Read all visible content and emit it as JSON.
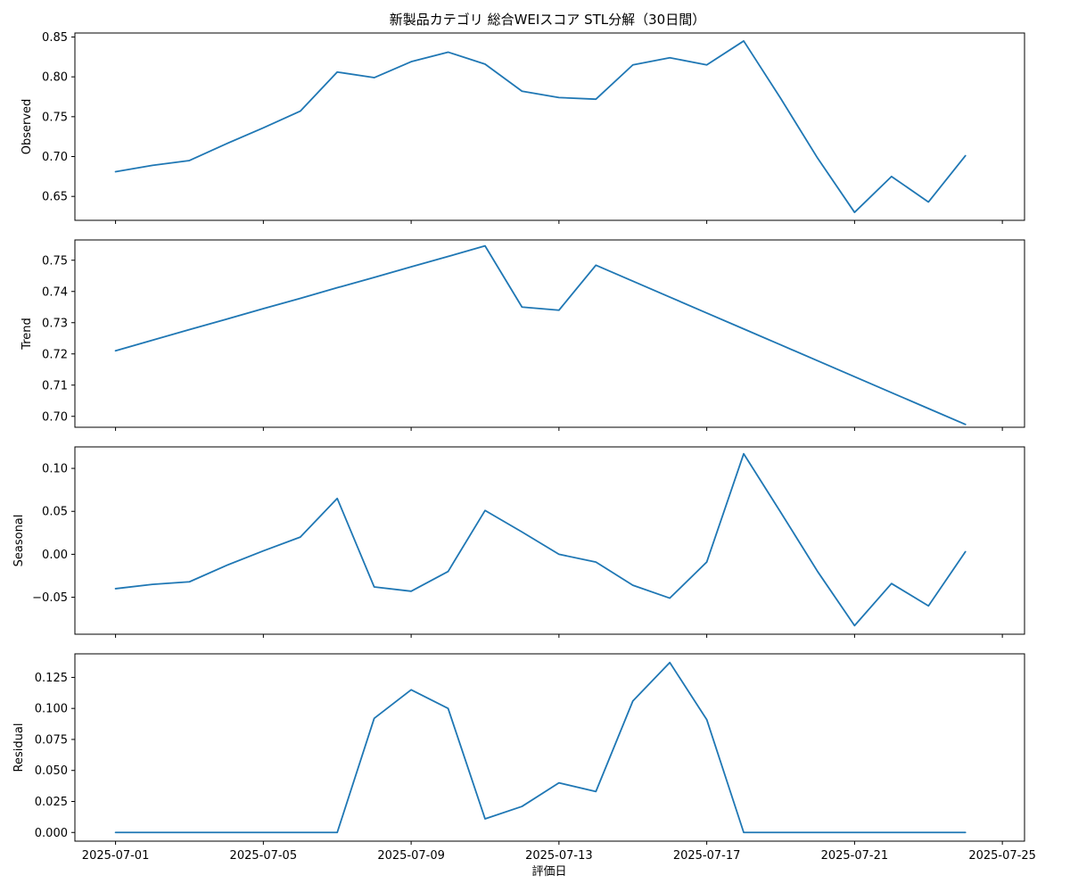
{
  "chart_data": {
    "type": "line",
    "title": "新製品カテゴリ 総合WEIスコア STL分解（30日間）",
    "xlabel": "評価日",
    "x_ticks": [
      "2025-07-01",
      "2025-07-05",
      "2025-07-09",
      "2025-07-13",
      "2025-07-17",
      "2025-07-21",
      "2025-07-25"
    ],
    "x": [
      "2025-07-01",
      "2025-07-02",
      "2025-07-03",
      "2025-07-04",
      "2025-07-05",
      "2025-07-06",
      "2025-07-07",
      "2025-07-08",
      "2025-07-09",
      "2025-07-10",
      "2025-07-11",
      "2025-07-12",
      "2025-07-13",
      "2025-07-14",
      "2025-07-15",
      "2025-07-16",
      "2025-07-17",
      "2025-07-18",
      "2025-07-19",
      "2025-07-20",
      "2025-07-21",
      "2025-07-22",
      "2025-07-23",
      "2025-07-24"
    ],
    "line_color": "#1f77b4",
    "grid": false,
    "panels": [
      {
        "ylabel": "Observed",
        "ylim": [
          0.62,
          0.855
        ],
        "y_ticks": [
          "0.65",
          "0.70",
          "0.75",
          "0.80",
          "0.85"
        ],
        "values": [
          0.681,
          0.689,
          0.695,
          0.716,
          0.736,
          0.757,
          0.806,
          0.799,
          0.819,
          0.831,
          0.816,
          0.782,
          0.774,
          0.772,
          0.815,
          0.824,
          0.815,
          0.845,
          0.773,
          0.698,
          0.63,
          0.675,
          0.643,
          0.701
        ]
      },
      {
        "ylabel": "Trend",
        "ylim": [
          0.6965,
          0.7565
        ],
        "y_ticks": [
          "0.70",
          "0.71",
          "0.72",
          "0.73",
          "0.74",
          "0.75"
        ],
        "values": [
          0.721,
          0.7244,
          0.7278,
          0.7311,
          0.7345,
          0.7378,
          0.7412,
          0.7445,
          0.7479,
          0.7512,
          0.7546,
          0.735,
          0.734,
          0.7484,
          0.7433,
          0.7382,
          0.7331,
          0.728,
          0.7229,
          0.7178,
          0.7127,
          0.7076,
          0.7025,
          0.6974
        ]
      },
      {
        "ylabel": "Seasonal",
        "ylim": [
          -0.093,
          0.125
        ],
        "y_ticks": [
          "−0.05",
          "0.00",
          "0.05",
          "0.10"
        ],
        "values": [
          -0.04,
          -0.035,
          -0.032,
          -0.013,
          0.004,
          0.02,
          0.065,
          -0.038,
          -0.043,
          -0.02,
          0.051,
          0.026,
          0.0,
          -0.009,
          -0.036,
          -0.051,
          -0.009,
          0.117,
          0.049,
          -0.02,
          -0.083,
          -0.034,
          -0.06,
          0.003
        ]
      },
      {
        "ylabel": "Residual",
        "ylim": [
          -0.007,
          0.144
        ],
        "y_ticks": [
          "0.000",
          "0.025",
          "0.050",
          "0.075",
          "0.100",
          "0.125"
        ],
        "values": [
          0.0,
          0.0,
          0.0,
          0.0,
          0.0,
          0.0,
          0.0,
          0.092,
          0.115,
          0.1,
          0.011,
          0.021,
          0.04,
          0.033,
          0.106,
          0.137,
          0.091,
          0.0,
          0.0,
          0.0,
          0.0,
          0.0,
          0.0,
          0.0
        ]
      }
    ]
  }
}
